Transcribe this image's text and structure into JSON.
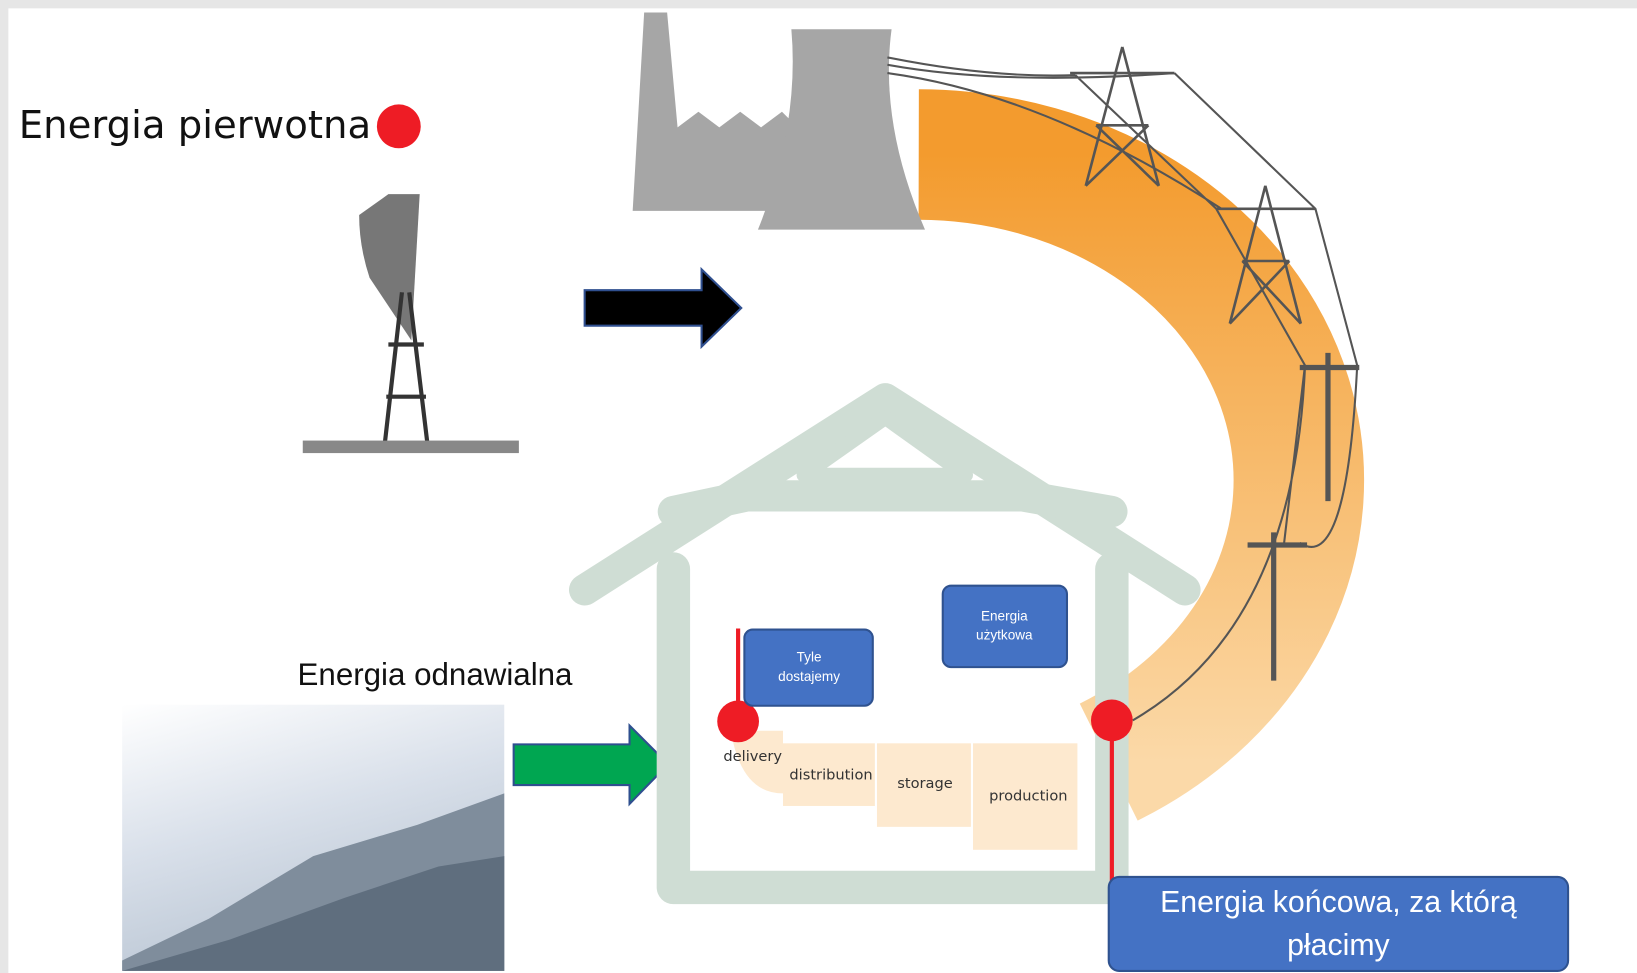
{
  "labels": {
    "primary": "Energia pierwotna",
    "renewable": "Energia odnawialna"
  },
  "boxes": [
    {
      "lines": [
        "Tyle",
        "dostajemy"
      ]
    },
    {
      "lines": [
        "Energia",
        "użytkowa"
      ]
    },
    {
      "lines": [
        "Energia końcowa, za którą",
        "płacimy"
      ]
    }
  ],
  "stages": [
    "delivery",
    "distribution",
    "storage",
    "production"
  ]
}
